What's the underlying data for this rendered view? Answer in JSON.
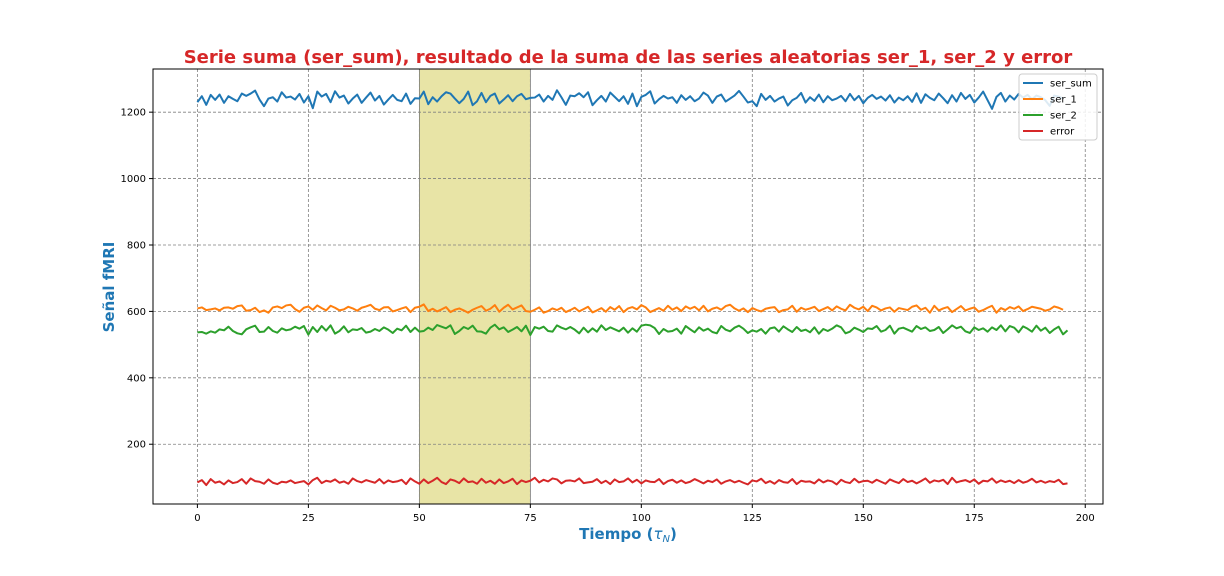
{
  "chart_data": {
    "type": "line",
    "title": "Serie suma (ser_sum), resultado de la suma de las series aleatorias ser_1, ser_2 y error",
    "xlabel": "Tiempo (",
    "xlabel_symbol": "τ",
    "xlabel_subscript": "N",
    "xlabel_close": ")",
    "ylabel": "Señal fMRI",
    "xlim": [
      -10,
      204
    ],
    "ylim": [
      20,
      1330
    ],
    "xticks": [
      0,
      25,
      50,
      75,
      100,
      125,
      150,
      175,
      200
    ],
    "yticks": [
      200,
      400,
      600,
      800,
      1000,
      1200
    ],
    "grid": true,
    "legend_position": "top-right",
    "highlight_span": [
      50,
      75
    ],
    "highlight_color": "#e8e4a6",
    "title_color": "#d62728",
    "label_color": "#1f77b4",
    "x_start": 0,
    "x_step": 1,
    "series": [
      {
        "name": "ser_sum",
        "color": "#1f77b4",
        "values": [
          1230,
          1248,
          1222,
          1252,
          1237,
          1253,
          1228,
          1248,
          1240,
          1233,
          1256,
          1249,
          1256,
          1265,
          1238,
          1218,
          1241,
          1245,
          1232,
          1260,
          1244,
          1247,
          1238,
          1255,
          1229,
          1248,
          1212,
          1262,
          1247,
          1255,
          1230,
          1263,
          1244,
          1250,
          1226,
          1241,
          1253,
          1228,
          1244,
          1259,
          1235,
          1249,
          1223,
          1238,
          1252,
          1237,
          1233,
          1256,
          1225,
          1242,
          1241,
          1262,
          1224,
          1245,
          1232,
          1248,
          1260,
          1256,
          1241,
          1227,
          1240,
          1262,
          1221,
          1233,
          1258,
          1230,
          1249,
          1256,
          1226,
          1238,
          1251,
          1233,
          1248,
          1255,
          1239,
          1243,
          1244,
          1253,
          1232,
          1249,
          1237,
          1266,
          1245,
          1222,
          1250,
          1248,
          1257,
          1245,
          1260,
          1221,
          1236,
          1249,
          1232,
          1259,
          1246,
          1233,
          1248,
          1225,
          1256,
          1218,
          1246,
          1252,
          1263,
          1226,
          1239,
          1249,
          1241,
          1245,
          1228,
          1251,
          1237,
          1248,
          1233,
          1241,
          1259,
          1250,
          1228,
          1247,
          1253,
          1232,
          1241,
          1250,
          1264,
          1247,
          1229,
          1233,
          1218,
          1255,
          1237,
          1249,
          1232,
          1241,
          1247,
          1220,
          1236,
          1243,
          1258,
          1229,
          1245,
          1234,
          1253,
          1230,
          1248,
          1236,
          1241,
          1249,
          1233,
          1255,
          1236,
          1249,
          1227,
          1243,
          1252,
          1240,
          1247,
          1235,
          1251,
          1229,
          1244,
          1236,
          1248,
          1231,
          1257,
          1228,
          1254,
          1243,
          1236,
          1256,
          1242,
          1227,
          1251,
          1232,
          1258,
          1240,
          1252,
          1229,
          1244,
          1262,
          1236,
          1210,
          1246,
          1258,
          1232,
          1250,
          1238,
          1255,
          1244,
          1252,
          1239,
          1250,
          1245,
          1236,
          1219,
          1250,
          1247,
          1241
        ]
      },
      {
        "name": "ser_1",
        "color": "#ff7f0e",
        "values": [
          609,
          612,
          604,
          606,
          609,
          603,
          611,
          612,
          608,
          616,
          618,
          602,
          604,
          611,
          598,
          603,
          596,
          612,
          615,
          610,
          618,
          620,
          607,
          599,
          611,
          615,
          605,
          618,
          610,
          603,
          617,
          611,
          603,
          606,
          614,
          609,
          602,
          611,
          615,
          620,
          608,
          604,
          612,
          613,
          600,
          604,
          609,
          613,
          598,
          611,
          614,
          621,
          601,
          608,
          600,
          606,
          613,
          598,
          605,
          609,
          603,
          596,
          605,
          611,
          616,
          602,
          608,
          619,
          599,
          611,
          620,
          606,
          612,
          618,
          601,
          599,
          605,
          612,
          596,
          601,
          609,
          604,
          611,
          598,
          604,
          611,
          600,
          607,
          614,
          597,
          603,
          610,
          599,
          613,
          605,
          616,
          598,
          609,
          613,
          606,
          619,
          612,
          598,
          604,
          610,
          602,
          617,
          605,
          612,
          601,
          615,
          608,
          614,
          603,
          617,
          600,
          608,
          612,
          605,
          616,
          620,
          609,
          602,
          609,
          598,
          610,
          604,
          600,
          608,
          611,
          613,
          598,
          604,
          606,
          617,
          599,
          611,
          605,
          609,
          614,
          601,
          607,
          613,
          603,
          615,
          608,
          603,
          620,
          611,
          606,
          614,
          601,
          617,
          612,
          603,
          609,
          612,
          599,
          610,
          607,
          604,
          614,
          618,
          605,
          611,
          596,
          617,
          603,
          609,
          613,
          598,
          607,
          616,
          603,
          608,
          612,
          599,
          604,
          611,
          617,
          596,
          610,
          604,
          613,
          608,
          615,
          601,
          607,
          614,
          611,
          608,
          602,
          606,
          615,
          611,
          605
        ]
      },
      {
        "name": "ser_2",
        "color": "#2ca02c",
        "values": [
          537,
          538,
          533,
          540,
          536,
          546,
          543,
          554,
          541,
          534,
          531,
          546,
          552,
          557,
          538,
          539,
          553,
          541,
          536,
          549,
          543,
          546,
          554,
          548,
          556,
          530,
          553,
          538,
          556,
          542,
          558,
          533,
          541,
          555,
          537,
          546,
          544,
          550,
          536,
          539,
          547,
          541,
          552,
          545,
          535,
          548,
          543,
          557,
          538,
          551,
          539,
          541,
          551,
          544,
          559,
          554,
          549,
          558,
          532,
          541,
          553,
          547,
          557,
          540,
          539,
          533,
          551,
          560,
          546,
          552,
          538,
          545,
          553,
          540,
          557,
          529,
          553,
          548,
          554,
          541,
          539,
          558,
          551,
          546,
          553,
          545,
          534,
          551,
          537,
          549,
          539,
          558,
          544,
          552,
          546,
          540,
          551,
          536,
          549,
          539,
          557,
          560,
          558,
          550,
          532,
          547,
          539,
          541,
          548,
          533,
          556,
          546,
          537,
          552,
          542,
          548,
          538,
          534,
          556,
          545,
          540,
          551,
          557,
          548,
          535,
          543,
          539,
          547,
          533,
          549,
          552,
          539,
          555,
          546,
          538,
          553,
          541,
          545,
          537,
          552,
          533,
          547,
          541,
          548,
          558,
          552,
          534,
          539,
          551,
          545,
          538,
          549,
          547,
          556,
          539,
          544,
          557,
          533,
          548,
          551,
          545,
          539,
          556,
          547,
          552,
          541,
          544,
          553,
          535,
          546,
          558,
          549,
          554,
          540,
          535,
          552,
          544,
          549,
          539,
          552,
          544,
          558,
          540,
          556,
          551,
          537,
          555,
          548,
          539,
          557,
          542,
          551,
          535,
          546,
          554,
          531,
          543
        ]
      },
      {
        "name": "error",
        "color": "#d62728",
        "values": [
          85,
          92,
          77,
          95,
          84,
          88,
          79,
          91,
          83,
          86,
          95,
          81,
          97,
          89,
          87,
          81,
          94,
          84,
          80,
          87,
          85,
          91,
          83,
          86,
          89,
          79,
          92,
          99,
          83,
          90,
          87,
          94,
          84,
          88,
          81,
          97,
          89,
          85,
          92,
          88,
          84,
          95,
          82,
          91,
          86,
          88,
          93,
          80,
          97,
          88,
          81,
          94,
          83,
          90,
          99,
          86,
          80,
          94,
          90,
          83,
          97,
          86,
          88,
          81,
          96,
          84,
          90,
          81,
          94,
          83,
          88,
          96,
          80,
          91,
          86,
          90,
          99,
          85,
          93,
          88,
          97,
          94,
          82,
          90,
          91,
          88,
          97,
          83,
          85,
          87,
          95,
          83,
          90,
          80,
          94,
          86,
          88,
          97,
          85,
          93,
          82,
          91,
          87,
          86,
          95,
          80,
          89,
          93,
          84,
          91,
          83,
          87,
          95,
          89,
          82,
          90,
          86,
          94,
          81,
          88,
          92,
          85,
          90,
          84,
          79,
          91,
          88,
          96,
          83,
          89,
          81,
          92,
          86,
          84,
          95,
          80,
          90,
          87,
          88,
          82,
          94,
          85,
          91,
          88,
          79,
          93,
          86,
          83,
          96,
          85,
          89,
          90,
          84,
          93,
          87,
          81,
          94,
          88,
          83,
          95,
          86,
          90,
          82,
          89,
          97,
          84,
          91,
          88,
          93,
          80,
          99,
          85,
          89,
          92,
          86,
          94,
          81,
          90,
          88,
          97,
          84,
          91,
          86,
          90,
          83,
          92,
          84,
          88,
          96,
          85,
          90,
          84,
          89,
          86,
          93,
          80,
          82
        ]
      }
    ]
  }
}
